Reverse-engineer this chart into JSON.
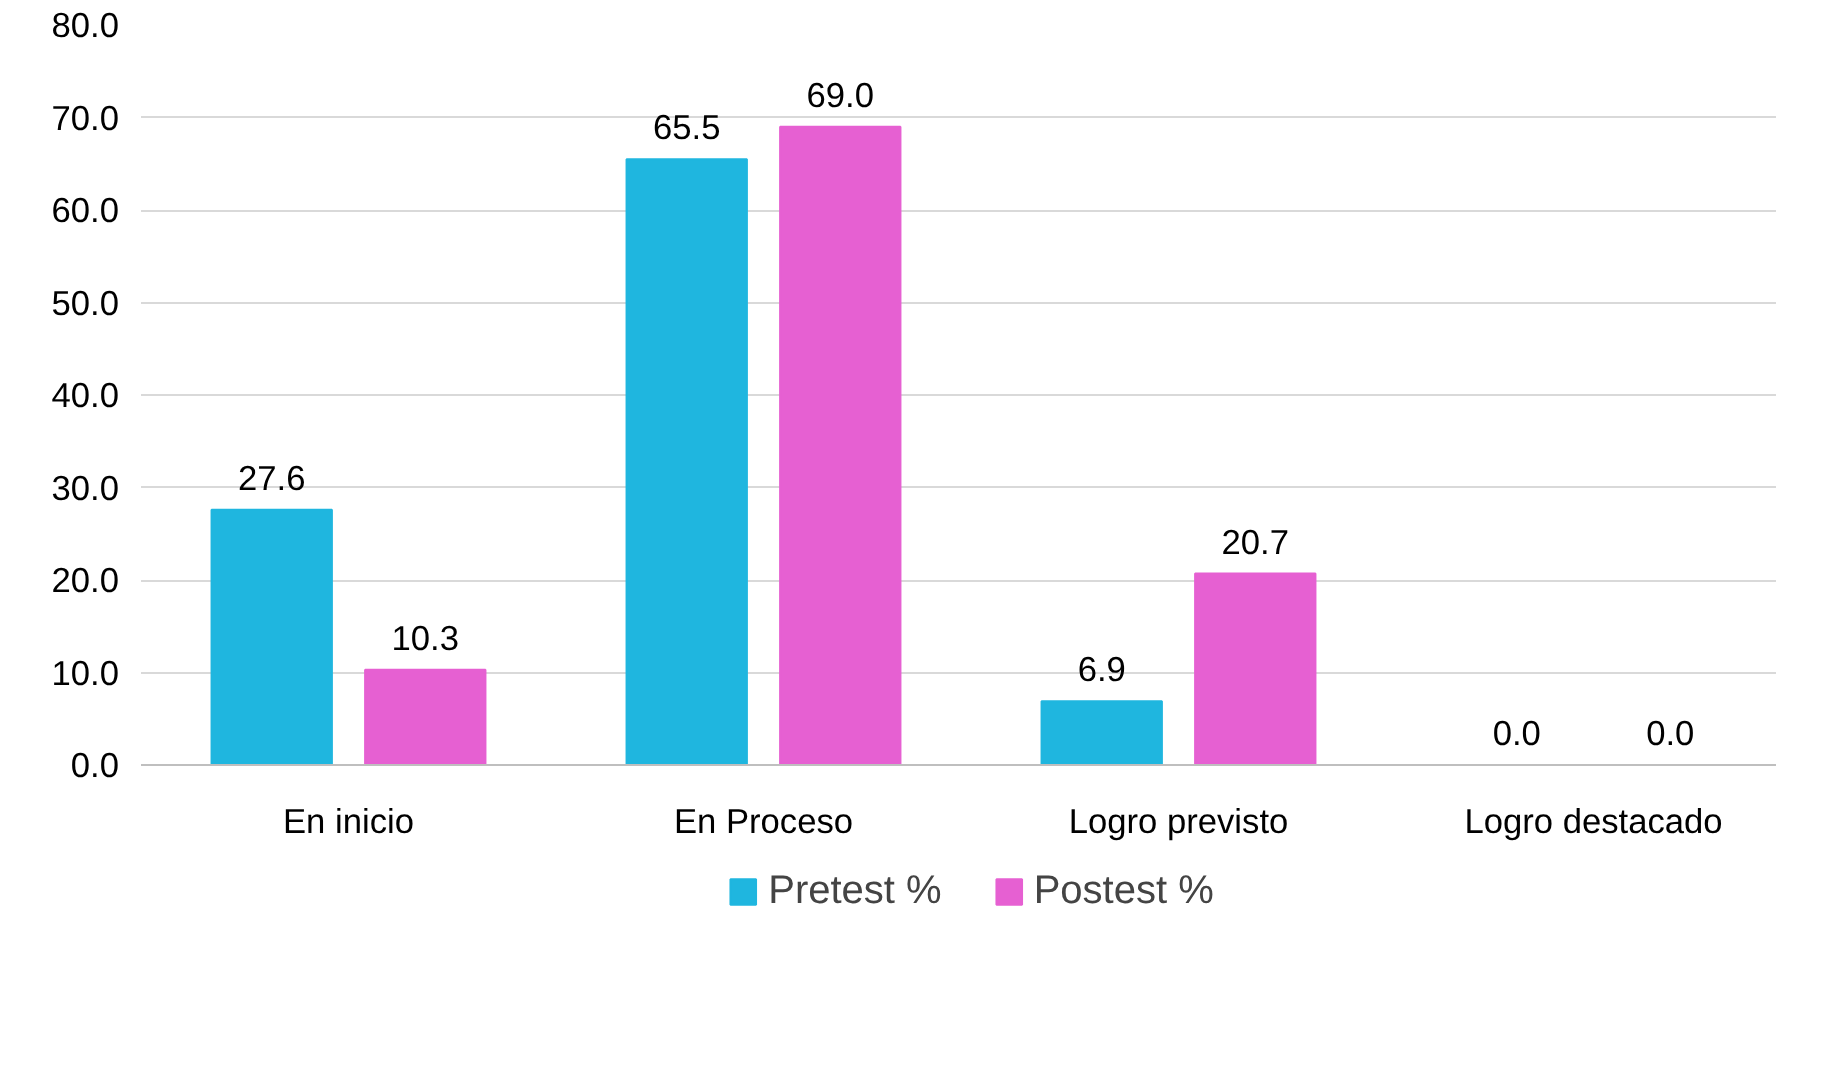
{
  "chart_data": {
    "type": "bar",
    "categories": [
      "En inicio",
      "En Proceso",
      "Logro previsto",
      "Logro destacado"
    ],
    "series": [
      {
        "name": "Pretest %",
        "color": "#1fb6df",
        "values": [
          27.6,
          65.5,
          6.9,
          0.0
        ],
        "value_labels": [
          "27.6",
          "65.5",
          "6.9",
          "0.0"
        ]
      },
      {
        "name": "Postest %",
        "color": "#e660d2",
        "values": [
          10.3,
          69.0,
          20.7,
          0.0
        ],
        "value_labels": [
          "10.3",
          "69.0",
          "20.7",
          "0.0"
        ]
      }
    ],
    "ylim": [
      0,
      80
    ],
    "yticks": [
      {
        "value": 0,
        "label": "0.0"
      },
      {
        "value": 10,
        "label": "10.0"
      },
      {
        "value": 20,
        "label": "20.0"
      },
      {
        "value": 30,
        "label": "30.0"
      },
      {
        "value": 40,
        "label": "40.0"
      },
      {
        "value": 50,
        "label": "50.0"
      },
      {
        "value": 60,
        "label": "60.0"
      },
      {
        "value": 70,
        "label": "70.0"
      },
      {
        "value": 80,
        "label": "80.0"
      }
    ],
    "grid": "y",
    "legend": "bottom"
  }
}
